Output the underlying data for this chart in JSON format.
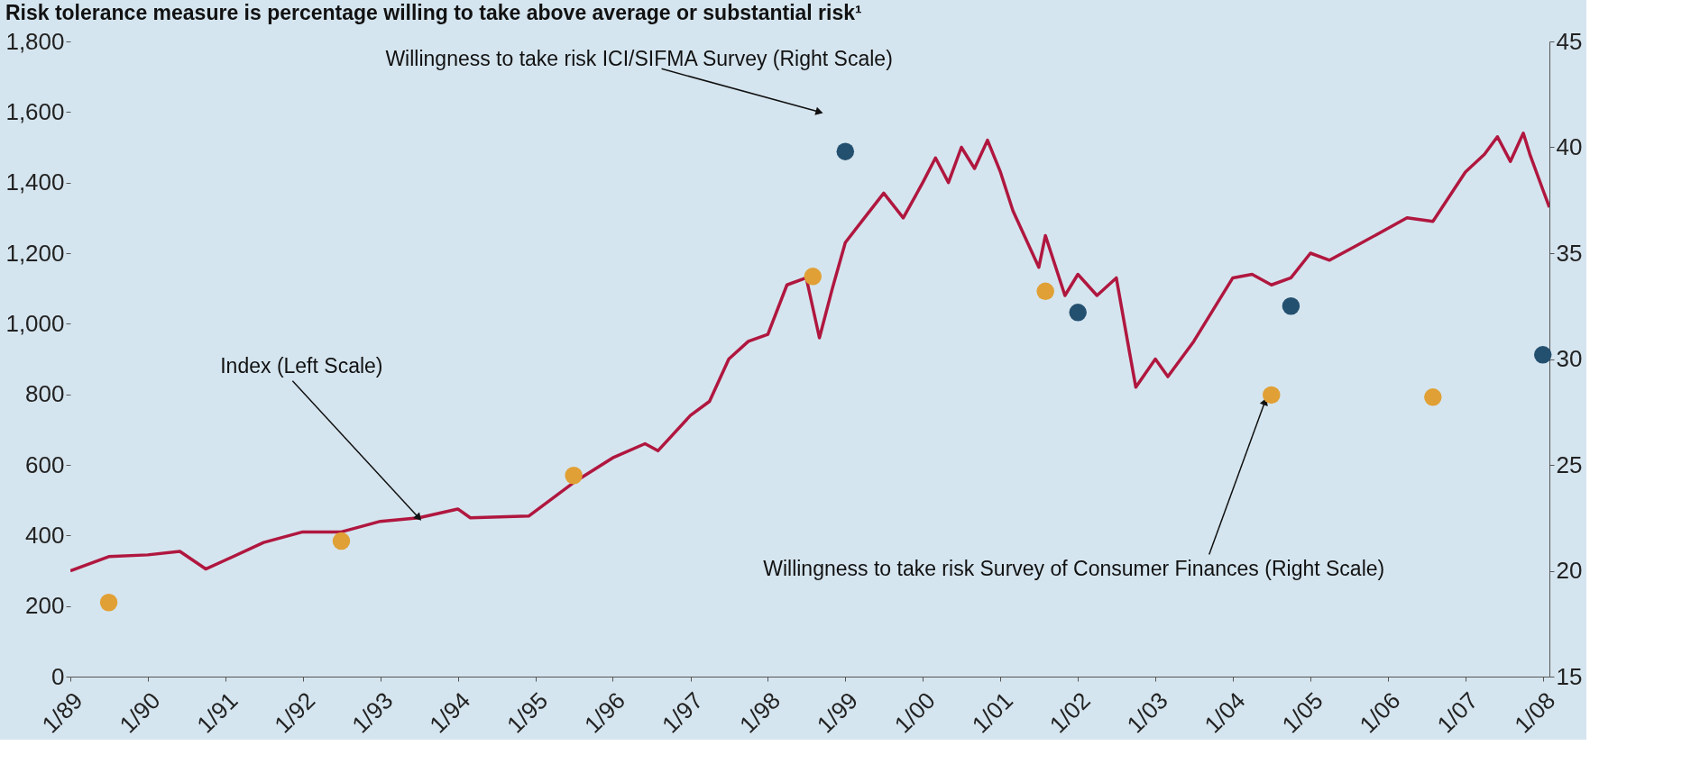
{
  "chart_data": {
    "type": "line",
    "title": "Risk tolerance measure is percentage willing to take above average or substantial risk¹",
    "xlim": [
      "1989-01",
      "2008-02"
    ],
    "xticks": [
      {
        "value": "1989-01",
        "label": "1/89"
      },
      {
        "value": "1990-01",
        "label": "1/90"
      },
      {
        "value": "1991-01",
        "label": "1/91"
      },
      {
        "value": "1992-01",
        "label": "1/92"
      },
      {
        "value": "1993-01",
        "label": "1/93"
      },
      {
        "value": "1994-01",
        "label": "1/94"
      },
      {
        "value": "1995-01",
        "label": "1/95"
      },
      {
        "value": "1996-01",
        "label": "1/96"
      },
      {
        "value": "1997-01",
        "label": "1/97"
      },
      {
        "value": "1998-01",
        "label": "1/98"
      },
      {
        "value": "1999-01",
        "label": "1/99"
      },
      {
        "value": "2000-01",
        "label": "1/00"
      },
      {
        "value": "2001-01",
        "label": "1/01"
      },
      {
        "value": "2002-01",
        "label": "1/02"
      },
      {
        "value": "2003-01",
        "label": "1/03"
      },
      {
        "value": "2004-01",
        "label": "1/04"
      },
      {
        "value": "2005-01",
        "label": "1/05"
      },
      {
        "value": "2006-01",
        "label": "1/06"
      },
      {
        "value": "2007-01",
        "label": "1/07"
      },
      {
        "value": "2008-01",
        "label": "1/08"
      }
    ],
    "ylim": [
      0,
      1800
    ],
    "yticks": [
      0,
      200,
      400,
      600,
      800,
      {
        "value": 1000,
        "label": "1,000"
      },
      {
        "value": 1200,
        "label": "1,200"
      },
      {
        "value": 1400,
        "label": "1,400"
      },
      {
        "value": 1600,
        "label": "1,600"
      },
      {
        "value": 1800,
        "label": "1,800"
      }
    ],
    "y2lim": [
      15,
      45
    ],
    "y2ticks": [
      15,
      20,
      25,
      30,
      35,
      40,
      45
    ],
    "grid": false,
    "line_style": "solid",
    "series": [
      {
        "color": "#b0173f",
        "x": [
          "1989-01",
          "1989-07",
          "1990-01",
          "1990-06",
          "1990-10",
          "1991-01",
          "1991-07",
          "1992-01",
          "1992-07",
          "1993-01",
          "1993-07",
          "1994-01",
          "1994-03",
          "1994-12",
          "1995-07",
          "1996-01",
          "1996-06",
          "1996-08",
          "1997-01",
          "1997-04",
          "1997-07",
          "1997-10",
          "1998-01",
          "1998-04",
          "1998-07",
          "1998-09",
          "1998-11",
          "1999-01",
          "1999-04",
          "1999-07",
          "1999-10",
          "2000-01",
          "2000-03",
          "2000-05",
          "2000-07",
          "2000-09",
          "2000-11",
          "2001-01",
          "2001-03",
          "2001-07",
          "2001-08",
          "2001-11",
          "2002-01",
          "2002-04",
          "2002-07",
          "2002-09",
          "2002-10",
          "2003-01",
          "2003-03",
          "2003-07",
          "2003-10",
          "2004-01",
          "2004-04",
          "2004-07",
          "2004-10",
          "2005-01",
          "2005-04",
          "2005-08",
          "2006-01",
          "2006-04",
          "2006-08",
          "2007-01",
          "2007-04",
          "2007-06",
          "2007-08",
          "2007-10",
          "2007-11",
          "2008-01",
          "2008-02"
        ],
        "values": [
          300,
          340,
          345,
          355,
          305,
          330,
          380,
          410,
          410,
          440,
          450,
          475,
          450,
          455,
          550,
          620,
          660,
          640,
          740,
          780,
          900,
          950,
          970,
          1110,
          1130,
          960,
          1100,
          1230,
          1300,
          1370,
          1300,
          1400,
          1470,
          1400,
          1500,
          1440,
          1520,
          1430,
          1320,
          1160,
          1250,
          1080,
          1140,
          1080,
          1130,
          920,
          820,
          900,
          850,
          950,
          1040,
          1130,
          1140,
          1110,
          1130,
          1200,
          1180,
          1220,
          1270,
          1300,
          1290,
          1430,
          1480,
          1530,
          1460,
          1540,
          1480,
          1380,
          1330
        ]
      },
      {
        "type": "scatter",
        "axis": "y2",
        "marker": "circle",
        "color": "#e0a035",
        "x": [
          "1989-07",
          "1992-07",
          "1995-07",
          "1998-08",
          "2001-08",
          "2004-07",
          "2006-08"
        ],
        "values": [
          18.5,
          21.4,
          24.5,
          33.9,
          33.2,
          28.3,
          28.2
        ]
      },
      {
        "type": "scatter",
        "axis": "y2",
        "marker": "circle",
        "color": "#24506f",
        "x": [
          "1999-01",
          "2002-01",
          "2004-10",
          "2008-01"
        ],
        "values": [
          39.8,
          32.2,
          32.5,
          30.2
        ]
      }
    ],
    "annotations": [
      {
        "text": "Willingness to take risk ICI/SIFMA Survey (Right Scale)",
        "x": "1998-09",
        "y": 1600
      },
      {
        "text": "Index (Left Scale)",
        "x": "1993-07",
        "y": 450
      },
      {
        "text": "Willingness to take risk Survey of Consumer Finances (Right Scale)",
        "x": "2004-06",
        "y": 780
      }
    ]
  }
}
